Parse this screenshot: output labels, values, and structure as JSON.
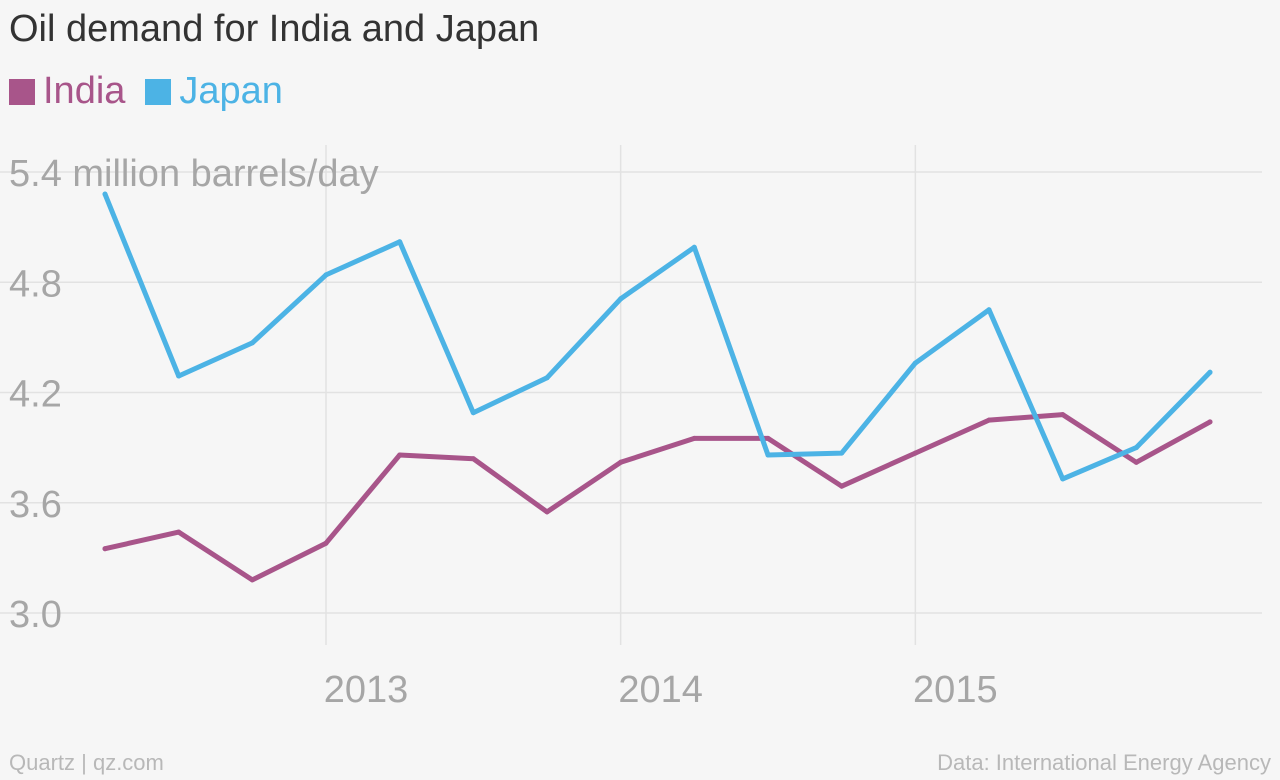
{
  "header": {
    "title": "Oil demand for India and Japan"
  },
  "footer": {
    "source_left": "Quartz | qz.com",
    "source_right": "Data: International Energy Agency"
  },
  "colors": {
    "background": "#f6f6f6",
    "grid": "#e2e2e2",
    "tick": "#a6a6a6",
    "india": "#a8558a",
    "japan": "#4cb3e5"
  },
  "chart_data": {
    "type": "line",
    "title": "Oil demand for India and Japan",
    "ylabel": "million barrels/day",
    "ylim": [
      3.0,
      5.4
    ],
    "yticks": [
      3.0,
      3.6,
      4.2,
      4.8,
      5.4
    ],
    "ytick_labels": [
      "3.0",
      "3.6",
      "4.2",
      "4.8",
      "5.4 million barrels/day"
    ],
    "xlim": [
      2012.2,
      2015.95
    ],
    "xticks": [
      2013,
      2014,
      2015
    ],
    "xtick_labels": [
      "2013",
      "2014",
      "2015"
    ],
    "grid": true,
    "legend_position": "top-left",
    "x": [
      2012.25,
      2012.5,
      2012.75,
      2013.0,
      2013.25,
      2013.5,
      2013.75,
      2014.0,
      2014.25,
      2014.5,
      2014.75,
      2015.0,
      2015.25,
      2015.5,
      2015.75,
      2016.0
    ],
    "series": [
      {
        "name": "India",
        "color": "#a8558a",
        "values": [
          3.35,
          3.44,
          3.18,
          3.38,
          3.86,
          3.84,
          3.55,
          3.82,
          3.95,
          3.95,
          3.69,
          3.87,
          4.05,
          4.08,
          3.82,
          4.04
        ]
      },
      {
        "name": "Japan",
        "color": "#4cb3e5",
        "values": [
          5.28,
          4.29,
          4.47,
          4.84,
          5.02,
          4.09,
          4.28,
          4.71,
          4.99,
          3.86,
          3.87,
          4.36,
          4.65,
          3.73,
          3.9,
          4.31
        ]
      }
    ]
  }
}
